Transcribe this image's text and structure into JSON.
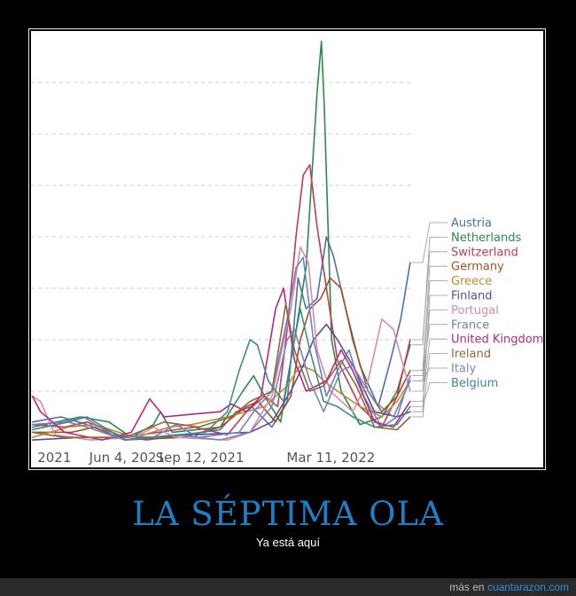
{
  "caption": {
    "title": "LA SÉPTIMA OLA",
    "subtitle": "Ya está aquí"
  },
  "footer": {
    "prefix": "más en",
    "site": "cuantarazon.com"
  },
  "colors": {
    "title": "#1f7fc4",
    "site_link": "#2a8fd6",
    "grid": "#cfcfcf"
  },
  "chart_data": {
    "type": "line",
    "title": "",
    "xlabel": "",
    "ylabel": "",
    "grid": true,
    "legend_placement": "right",
    "xlim": [
      "2021-01-23",
      "2022-07-03"
    ],
    "ylim": [
      0,
      8
    ],
    "y_gridlines": [
      1,
      2,
      3,
      4,
      5,
      6,
      7
    ],
    "x_tick_labels": [
      {
        "date": "2021-02-24",
        "label": "2021"
      },
      {
        "date": "2021-06-04",
        "label": "Jun 4, 2021"
      },
      {
        "date": "2021-09-12",
        "label": "Sep 12, 2021"
      },
      {
        "date": "2022-03-11",
        "label": "Mar 11, 2022"
      }
    ],
    "series": [
      {
        "name": "Austria",
        "color": "#4e6fa8",
        "points": [
          [
            "2021-01-25",
            0.4
          ],
          [
            "2021-03-05",
            0.5
          ],
          [
            "2021-04-10",
            0.35
          ],
          [
            "2021-05-15",
            0.15
          ],
          [
            "2021-07-01",
            0.05
          ],
          [
            "2021-08-20",
            0.15
          ],
          [
            "2021-10-10",
            0.25
          ],
          [
            "2021-11-01",
            0.6
          ],
          [
            "2021-11-22",
            0.7
          ],
          [
            "2021-12-20",
            0.3
          ],
          [
            "2022-01-10",
            0.8
          ],
          [
            "2022-01-25",
            3.2
          ],
          [
            "2022-02-05",
            2.6
          ],
          [
            "2022-02-20",
            2.8
          ],
          [
            "2022-03-05",
            4.0
          ],
          [
            "2022-03-15",
            3.6
          ],
          [
            "2022-03-28",
            2.8
          ],
          [
            "2022-04-20",
            1.5
          ],
          [
            "2022-05-15",
            0.7
          ],
          [
            "2022-06-01",
            1.6
          ],
          [
            "2022-06-15",
            2.4
          ],
          [
            "2022-06-28",
            3.5
          ]
        ]
      },
      {
        "name": "Netherlands",
        "color": "#2d8a4e",
        "points": [
          [
            "2021-01-25",
            0.3
          ],
          [
            "2021-04-01",
            0.5
          ],
          [
            "2021-05-10",
            0.4
          ],
          [
            "2021-06-10",
            0.1
          ],
          [
            "2021-07-10",
            0.35
          ],
          [
            "2021-07-20",
            0.6
          ],
          [
            "2021-08-05",
            0.2
          ],
          [
            "2021-10-10",
            0.3
          ],
          [
            "2021-11-10",
            1.0
          ],
          [
            "2021-11-25",
            1.3
          ],
          [
            "2021-12-10",
            0.9
          ],
          [
            "2022-01-01",
            0.4
          ],
          [
            "2022-01-20",
            2.0
          ],
          [
            "2022-02-05",
            3.4
          ],
          [
            "2022-02-20",
            6.8
          ],
          [
            "2022-02-26",
            7.8
          ],
          [
            "2022-03-02",
            6.5
          ],
          [
            "2022-03-12",
            2.0
          ],
          [
            "2022-03-25",
            1.0
          ],
          [
            "2022-04-20",
            0.35
          ],
          [
            "2022-05-20",
            0.5
          ],
          [
            "2022-06-10",
            1.0
          ],
          [
            "2022-06-28",
            1.9
          ]
        ]
      },
      {
        "name": "Switzerland",
        "color": "#c73a52",
        "points": [
          [
            "2021-01-25",
            0.35
          ],
          [
            "2021-03-10",
            0.3
          ],
          [
            "2021-04-10",
            0.4
          ],
          [
            "2021-06-01",
            0.1
          ],
          [
            "2021-08-10",
            0.25
          ],
          [
            "2021-09-05",
            0.3
          ],
          [
            "2021-10-20",
            0.15
          ],
          [
            "2021-11-15",
            0.6
          ],
          [
            "2021-12-10",
            0.9
          ],
          [
            "2021-12-28",
            0.7
          ],
          [
            "2022-01-10",
            2.2
          ],
          [
            "2022-01-22",
            4.0
          ],
          [
            "2022-02-01",
            5.2
          ],
          [
            "2022-02-10",
            5.4
          ],
          [
            "2022-02-20",
            4.2
          ],
          [
            "2022-03-05",
            3.0
          ],
          [
            "2022-03-20",
            1.6
          ],
          [
            "2022-04-20",
            0.7
          ],
          [
            "2022-05-20",
            0.3
          ],
          [
            "2022-06-10",
            0.9
          ],
          [
            "2022-06-28",
            2.0
          ]
        ]
      },
      {
        "name": "Germany",
        "color": "#a3501f",
        "points": [
          [
            "2021-01-25",
            0.2
          ],
          [
            "2021-03-20",
            0.2
          ],
          [
            "2021-04-20",
            0.3
          ],
          [
            "2021-06-01",
            0.05
          ],
          [
            "2021-08-20",
            0.1
          ],
          [
            "2021-10-10",
            0.3
          ],
          [
            "2021-11-15",
            0.7
          ],
          [
            "2021-12-01",
            0.8
          ],
          [
            "2021-12-25",
            0.4
          ],
          [
            "2022-01-15",
            0.9
          ],
          [
            "2022-01-28",
            2.0
          ],
          [
            "2022-02-10",
            2.6
          ],
          [
            "2022-02-25",
            2.8
          ],
          [
            "2022-03-10",
            3.2
          ],
          [
            "2022-03-25",
            3.0
          ],
          [
            "2022-04-10",
            2.0
          ],
          [
            "2022-05-01",
            1.0
          ],
          [
            "2022-05-20",
            0.6
          ],
          [
            "2022-06-10",
            0.9
          ],
          [
            "2022-06-28",
            1.4
          ]
        ]
      },
      {
        "name": "Greece",
        "color": "#c48a2e",
        "points": [
          [
            "2021-01-25",
            0.1
          ],
          [
            "2021-03-15",
            0.3
          ],
          [
            "2021-04-20",
            0.35
          ],
          [
            "2021-06-15",
            0.1
          ],
          [
            "2021-08-01",
            0.3
          ],
          [
            "2021-09-01",
            0.35
          ],
          [
            "2021-10-20",
            0.5
          ],
          [
            "2021-11-15",
            0.6
          ],
          [
            "2021-12-10",
            0.7
          ],
          [
            "2022-01-10",
            1.1
          ],
          [
            "2022-01-28",
            1.5
          ],
          [
            "2022-02-15",
            1.4
          ],
          [
            "2022-03-01",
            1.2
          ],
          [
            "2022-03-20",
            1.0
          ],
          [
            "2022-04-20",
            0.7
          ],
          [
            "2022-05-20",
            0.5
          ],
          [
            "2022-06-10",
            0.8
          ],
          [
            "2022-06-28",
            1.2
          ]
        ]
      },
      {
        "name": "Finland",
        "color": "#5e4a8c",
        "points": [
          [
            "2021-01-25",
            0.05
          ],
          [
            "2021-04-01",
            0.1
          ],
          [
            "2021-07-01",
            0.1
          ],
          [
            "2021-09-01",
            0.15
          ],
          [
            "2021-11-20",
            0.2
          ],
          [
            "2021-12-20",
            0.4
          ],
          [
            "2022-01-15",
            1.0
          ],
          [
            "2022-02-01",
            1.5
          ],
          [
            "2022-02-15",
            2.0
          ],
          [
            "2022-03-05",
            2.3
          ],
          [
            "2022-03-20",
            2.0
          ],
          [
            "2022-04-10",
            1.5
          ],
          [
            "2022-05-10",
            0.6
          ],
          [
            "2022-06-10",
            0.5
          ],
          [
            "2022-06-28",
            0.6
          ]
        ]
      },
      {
        "name": "Portugal",
        "color": "#d98ca7",
        "points": [
          [
            "2021-01-25",
            0.9
          ],
          [
            "2021-02-05",
            0.8
          ],
          [
            "2021-02-25",
            0.15
          ],
          [
            "2021-04-15",
            0.05
          ],
          [
            "2021-06-15",
            0.1
          ],
          [
            "2021-07-10",
            0.3
          ],
          [
            "2021-08-10",
            0.1
          ],
          [
            "2021-10-20",
            0.05
          ],
          [
            "2021-11-20",
            0.2
          ],
          [
            "2021-12-20",
            0.9
          ],
          [
            "2022-01-15",
            2.6
          ],
          [
            "2022-01-28",
            3.8
          ],
          [
            "2022-02-08",
            3.5
          ],
          [
            "2022-02-20",
            1.8
          ],
          [
            "2022-03-10",
            1.0
          ],
          [
            "2022-04-10",
            0.6
          ],
          [
            "2022-05-01",
            1.2
          ],
          [
            "2022-05-20",
            2.4
          ],
          [
            "2022-06-05",
            2.2
          ],
          [
            "2022-06-28",
            1.0
          ]
        ]
      },
      {
        "name": "France",
        "color": "#6f7fc6",
        "points": [
          [
            "2021-01-25",
            0.35
          ],
          [
            "2021-03-10",
            0.4
          ],
          [
            "2021-04-05",
            0.5
          ],
          [
            "2021-05-15",
            0.15
          ],
          [
            "2021-07-10",
            0.1
          ],
          [
            "2021-08-10",
            0.35
          ],
          [
            "2021-09-10",
            0.1
          ],
          [
            "2021-11-05",
            0.2
          ],
          [
            "2021-11-25",
            0.6
          ],
          [
            "2021-12-20",
            1.0
          ],
          [
            "2022-01-10",
            2.4
          ],
          [
            "2022-01-22",
            3.4
          ],
          [
            "2022-02-01",
            3.6
          ],
          [
            "2022-02-15",
            2.0
          ],
          [
            "2022-03-05",
            0.9
          ],
          [
            "2022-03-20",
            1.4
          ],
          [
            "2022-04-05",
            1.8
          ],
          [
            "2022-04-25",
            0.9
          ],
          [
            "2022-05-20",
            0.3
          ],
          [
            "2022-06-10",
            0.5
          ],
          [
            "2022-06-28",
            1.3
          ]
        ]
      },
      {
        "name": "United Kingdom",
        "color": "#b8287a",
        "points": [
          [
            "2021-01-25",
            0.9
          ],
          [
            "2021-02-05",
            0.6
          ],
          [
            "2021-03-10",
            0.2
          ],
          [
            "2021-05-01",
            0.05
          ],
          [
            "2021-06-10",
            0.2
          ],
          [
            "2021-07-05",
            0.85
          ],
          [
            "2021-07-25",
            0.5
          ],
          [
            "2021-09-01",
            0.55
          ],
          [
            "2021-10-10",
            0.6
          ],
          [
            "2021-10-25",
            0.75
          ],
          [
            "2021-11-15",
            0.6
          ],
          [
            "2021-12-05",
            0.9
          ],
          [
            "2021-12-25",
            2.6
          ],
          [
            "2022-01-05",
            3.0
          ],
          [
            "2022-01-20",
            1.6
          ],
          [
            "2022-02-05",
            1.0
          ],
          [
            "2022-03-05",
            1.2
          ],
          [
            "2022-03-25",
            1.8
          ],
          [
            "2022-04-10",
            1.4
          ],
          [
            "2022-05-10",
            0.4
          ],
          [
            "2022-06-05",
            0.3
          ],
          [
            "2022-06-28",
            0.8
          ]
        ]
      },
      {
        "name": "Ireland",
        "color": "#8e6a3a",
        "points": [
          [
            "2021-01-25",
            0.2
          ],
          [
            "2021-03-10",
            0.1
          ],
          [
            "2021-06-01",
            0.1
          ],
          [
            "2021-07-25",
            0.4
          ],
          [
            "2021-09-10",
            0.3
          ],
          [
            "2021-10-25",
            0.5
          ],
          [
            "2021-11-20",
            0.8
          ],
          [
            "2021-12-20",
            1.0
          ],
          [
            "2022-01-08",
            2.7
          ],
          [
            "2022-01-20",
            1.8
          ],
          [
            "2022-02-10",
            1.0
          ],
          [
            "2022-03-01",
            1.1
          ],
          [
            "2022-03-25",
            1.6
          ],
          [
            "2022-04-15",
            1.1
          ],
          [
            "2022-05-10",
            0.3
          ],
          [
            "2022-06-10",
            0.25
          ],
          [
            "2022-06-28",
            0.5
          ]
        ]
      },
      {
        "name": "Italy",
        "color": "#7b84b5",
        "points": [
          [
            "2021-01-25",
            0.25
          ],
          [
            "2021-03-15",
            0.4
          ],
          [
            "2021-04-10",
            0.3
          ],
          [
            "2021-06-01",
            0.05
          ],
          [
            "2021-08-10",
            0.15
          ],
          [
            "2021-10-10",
            0.05
          ],
          [
            "2021-11-20",
            0.2
          ],
          [
            "2021-12-20",
            0.7
          ],
          [
            "2022-01-10",
            2.0
          ],
          [
            "2022-01-20",
            2.2
          ],
          [
            "2022-02-10",
            1.2
          ],
          [
            "2022-03-01",
            0.6
          ],
          [
            "2022-03-25",
            1.4
          ],
          [
            "2022-04-10",
            1.5
          ],
          [
            "2022-05-10",
            0.8
          ],
          [
            "2022-06-05",
            0.5
          ],
          [
            "2022-06-28",
            1.2
          ]
        ]
      },
      {
        "name": "Belgium",
        "color": "#3e8a8c",
        "points": [
          [
            "2021-01-25",
            0.25
          ],
          [
            "2021-03-15",
            0.4
          ],
          [
            "2021-04-10",
            0.5
          ],
          [
            "2021-06-01",
            0.05
          ],
          [
            "2021-08-10",
            0.15
          ],
          [
            "2021-09-20",
            0.2
          ],
          [
            "2021-10-20",
            0.6
          ],
          [
            "2021-11-05",
            1.4
          ],
          [
            "2021-11-20",
            2.0
          ],
          [
            "2021-11-30",
            1.9
          ],
          [
            "2021-12-15",
            1.2
          ],
          [
            "2022-01-05",
            0.8
          ],
          [
            "2022-01-20",
            2.0
          ],
          [
            "2022-01-28",
            2.6
          ],
          [
            "2022-02-10",
            1.8
          ],
          [
            "2022-03-01",
            0.8
          ],
          [
            "2022-03-20",
            0.7
          ],
          [
            "2022-04-10",
            0.5
          ],
          [
            "2022-05-10",
            0.3
          ],
          [
            "2022-06-10",
            0.35
          ],
          [
            "2022-06-28",
            0.7
          ]
        ]
      }
    ]
  }
}
